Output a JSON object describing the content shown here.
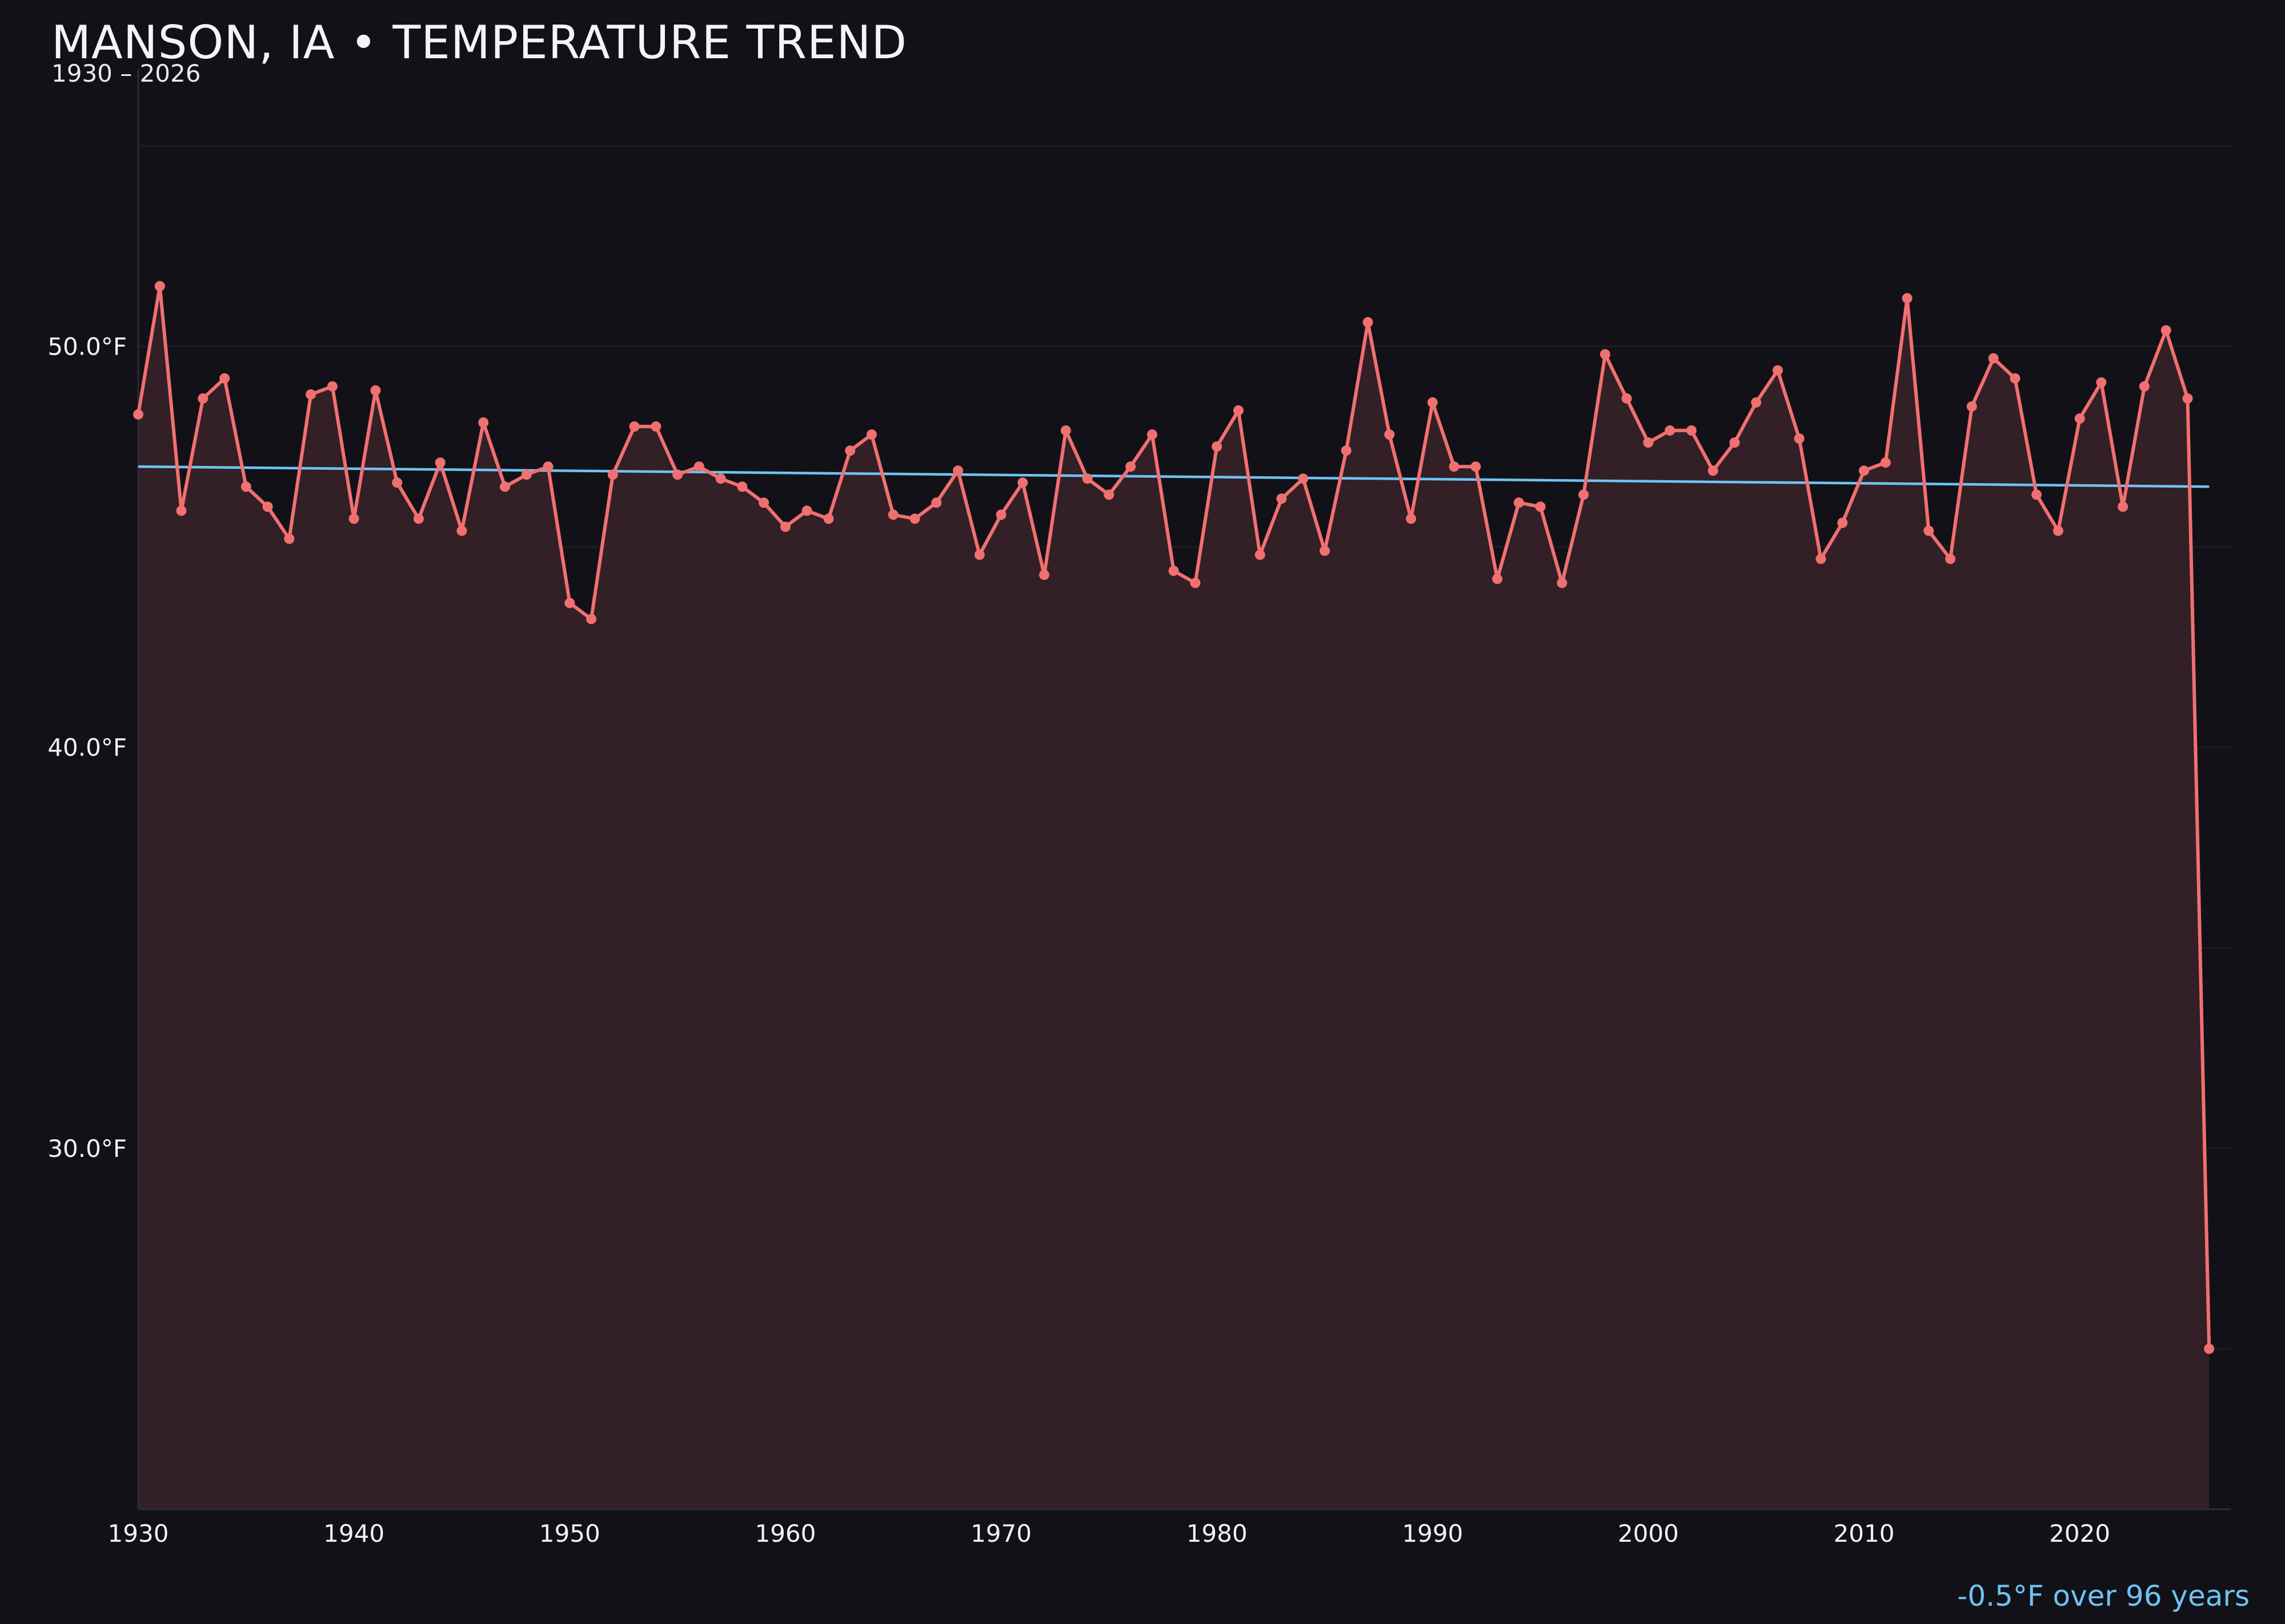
{
  "chart_data": {
    "type": "line",
    "title": "MANSON, IA • TEMPERATURE TREND",
    "subtitle": "1930 – 2026",
    "annotation": "-0.5°F over 96 years",
    "xlabel": "",
    "ylabel": "",
    "xlim": [
      1930,
      2027
    ],
    "ylim": [
      21,
      56.5
    ],
    "x_ticks": [
      1930,
      1940,
      1950,
      1960,
      1970,
      1980,
      1990,
      2000,
      2010,
      2020
    ],
    "x_tick_labels": [
      "1930",
      "1940",
      "1950",
      "1960",
      "1970",
      "1980",
      "1990",
      "2000",
      "2010",
      "2020"
    ],
    "y_ticks": [
      30,
      40,
      50
    ],
    "y_tick_labels": [
      "30.0°F",
      "40.0°F",
      "50.0°F"
    ],
    "grid": true,
    "colors": {
      "background": "#121118",
      "series": "#f07070",
      "fill": "#331f26",
      "trend": "#6ec3f2",
      "grid": "#1f1b22"
    },
    "series": [
      {
        "x": [
          1930,
          1931,
          1932,
          1933,
          1934,
          1935,
          1936,
          1937,
          1938,
          1939,
          1940,
          1941,
          1942,
          1943,
          1944,
          1945,
          1946,
          1947,
          1948,
          1949,
          1950,
          1951,
          1952,
          1953,
          1954,
          1955,
          1956,
          1957,
          1958,
          1959,
          1960,
          1961,
          1962,
          1963,
          1964,
          1965,
          1966,
          1967,
          1968,
          1969,
          1970,
          1971,
          1972,
          1973,
          1974,
          1975,
          1976,
          1977,
          1978,
          1979,
          1980,
          1981,
          1982,
          1983,
          1984,
          1985,
          1986,
          1987,
          1988,
          1989,
          1990,
          1991,
          1992,
          1993,
          1994,
          1995,
          1996,
          1997,
          1998,
          1999,
          2000,
          2001,
          2002,
          2003,
          2004,
          2005,
          2006,
          2007,
          2008,
          2009,
          2010,
          2011,
          2012,
          2013,
          2014,
          2015,
          2016,
          2017,
          2018,
          2019,
          2020,
          2021,
          2022,
          2023,
          2024,
          2025,
          2026
        ],
        "values": [
          48.3,
          51.5,
          45.9,
          48.7,
          49.2,
          46.5,
          46.0,
          45.2,
          48.8,
          49.0,
          45.7,
          48.9,
          46.6,
          45.7,
          47.1,
          45.4,
          48.1,
          46.5,
          46.8,
          47.0,
          43.6,
          43.2,
          46.8,
          48.0,
          48.0,
          46.8,
          47.0,
          46.7,
          46.5,
          46.1,
          45.5,
          45.9,
          45.7,
          47.4,
          47.8,
          45.8,
          45.7,
          46.1,
          46.9,
          44.8,
          45.8,
          46.6,
          44.3,
          47.9,
          46.7,
          46.3,
          47.0,
          47.8,
          44.4,
          44.1,
          47.5,
          48.4,
          44.8,
          46.2,
          46.7,
          44.9,
          47.4,
          50.6,
          47.8,
          45.7,
          48.6,
          47.0,
          47.0,
          44.2,
          46.1,
          46.0,
          44.1,
          46.3,
          49.8,
          48.7,
          47.6,
          47.9,
          47.9,
          46.9,
          47.6,
          48.6,
          49.4,
          47.7,
          44.7,
          45.6,
          46.9,
          47.1,
          51.2,
          45.4,
          44.7,
          48.5,
          49.7,
          49.2,
          46.3,
          45.4,
          48.2,
          49.1,
          46.0,
          49.0,
          50.4,
          48.7,
          25.0
        ]
      },
      {
        "kind": "trend",
        "x": [
          1930,
          2026
        ],
        "values": [
          47.0,
          46.5
        ]
      }
    ]
  }
}
